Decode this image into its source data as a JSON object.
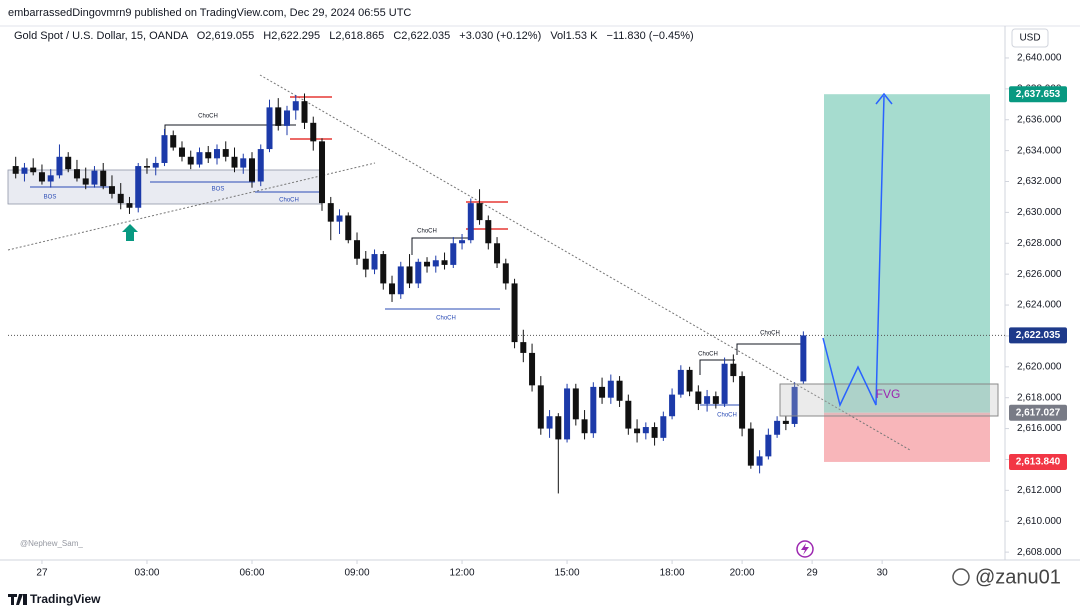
{
  "published": "embarrassedDingovmrn9 published on TradingView.com, Dec 29, 2024 06:55 UTC",
  "signature": "@Nephew_Sam_",
  "brand": "TradingView",
  "watermark": "@zanu01",
  "chart_data": {
    "type": "candlestick",
    "title": "Gold Spot / U.S. Dollar, 15, OANDA",
    "legend": [
      "O2,619.055",
      "H2,622.295",
      "L2,618.865",
      "C2,622.035",
      "+3.030 (+0.12%)",
      "Vol1.53 K",
      "−11.830 (−0.45%)"
    ],
    "currency": "USD",
    "up_color": "#1c3aa9",
    "down_color": "#111111",
    "x": [
      -0.75,
      -0.5,
      -0.25,
      0,
      0.25,
      0.5,
      0.75,
      1,
      1.25,
      1.5,
      1.75,
      2,
      2.25,
      2.5,
      2.75,
      3,
      3.25,
      3.5,
      3.75,
      4,
      4.25,
      4.5,
      4.75,
      5,
      5.25,
      5.5,
      5.75,
      6,
      6.25,
      6.5,
      6.75,
      7,
      7.25,
      7.5,
      7.75,
      8,
      8.25,
      8.5,
      8.75,
      9,
      9.25,
      9.5,
      9.75,
      10,
      10.25,
      10.5,
      10.75,
      11,
      11.25,
      11.5,
      11.75,
      12,
      12.25,
      12.5,
      12.75,
      13,
      13.25,
      13.5,
      13.75,
      14,
      14.25,
      14.5,
      14.75,
      15,
      15.25,
      15.5,
      15.75,
      16,
      16.25,
      16.5,
      16.75,
      17,
      17.25,
      17.5,
      17.75,
      18,
      18.25,
      18.5,
      18.75,
      19,
      19.25,
      19.5,
      19.75,
      20,
      20.25,
      20.5,
      20.75,
      21,
      21.25,
      21.5,
      21.75
    ],
    "open": [
      2633.0,
      2632.5,
      2632.9,
      2632.6,
      2632.0,
      2632.4,
      2633.6,
      2632.8,
      2632.2,
      2631.8,
      2632.7,
      2631.7,
      2631.2,
      2630.6,
      2630.3,
      2633.0,
      2632.9,
      2633.2,
      2635.0,
      2634.2,
      2633.6,
      2633.1,
      2633.9,
      2633.5,
      2634.1,
      2633.6,
      2632.9,
      2633.5,
      2632.0,
      2634.1,
      2636.8,
      2635.6,
      2636.6,
      2637.2,
      2635.8,
      2634.6,
      2630.6,
      2629.4,
      2629.8,
      2628.2,
      2627.0,
      2626.3,
      2627.3,
      2625.4,
      2624.7,
      2626.5,
      2625.4,
      2626.8,
      2626.5,
      2626.9,
      2626.6,
      2628.0,
      2628.2,
      2630.6,
      2629.5,
      2628.0,
      2626.7,
      2625.4,
      2621.6,
      2620.9,
      2618.8,
      2616.0,
      2616.8,
      2615.3,
      2618.6,
      2616.6,
      2615.7,
      2618.7,
      2618.0,
      2619.1,
      2617.8,
      2616.0,
      2615.7,
      2616.1,
      2615.4,
      2616.8,
      2618.2,
      2619.8,
      2618.4,
      2617.6,
      2618.1,
      2617.6,
      2620.2,
      2619.4,
      2616.0,
      2613.6,
      2614.2,
      2615.6,
      2616.5,
      2616.3,
      2619.055
    ],
    "high": [
      2633.6,
      2633.2,
      2633.5,
      2633.1,
      2632.8,
      2634.4,
      2633.9,
      2633.4,
      2632.9,
      2633.0,
      2633.2,
      2632.4,
      2631.9,
      2631.0,
      2633.2,
      2633.5,
      2633.6,
      2635.4,
      2635.3,
      2634.6,
      2634.0,
      2634.2,
      2634.3,
      2634.4,
      2634.6,
      2634.2,
      2633.8,
      2633.9,
      2634.4,
      2637.3,
      2637.4,
      2636.9,
      2637.6,
      2637.7,
      2636.2,
      2634.8,
      2631.0,
      2630.2,
      2630.0,
      2628.7,
      2627.5,
      2627.6,
      2627.5,
      2625.9,
      2626.8,
      2627.3,
      2627.0,
      2627.1,
      2627.2,
      2627.4,
      2628.4,
      2628.6,
      2630.9,
      2631.5,
      2629.8,
      2628.4,
      2627.0,
      2625.7,
      2622.4,
      2621.5,
      2619.4,
      2617.2,
      2617.0,
      2618.9,
      2618.9,
      2617.2,
      2619.0,
      2619.3,
      2619.5,
      2619.4,
      2618.2,
      2616.6,
      2616.4,
      2616.4,
      2617.1,
      2618.6,
      2620.1,
      2620.0,
      2618.8,
      2618.5,
      2618.4,
      2620.6,
      2620.8,
      2619.7,
      2616.4,
      2614.6,
      2616.0,
      2616.8,
      2616.8,
      2619.0,
      2622.295
    ],
    "low": [
      2632.2,
      2632.0,
      2632.4,
      2631.8,
      2631.6,
      2632.2,
      2632.6,
      2632.0,
      2631.5,
      2631.6,
      2631.5,
      2630.9,
      2630.2,
      2629.9,
      2630.0,
      2632.5,
      2632.4,
      2633.0,
      2634.0,
      2633.3,
      2632.8,
      2632.9,
      2633.2,
      2633.1,
      2633.3,
      2632.6,
      2632.5,
      2631.6,
      2631.7,
      2633.9,
      2635.3,
      2635.0,
      2636.0,
      2635.4,
      2634.0,
      2630.1,
      2628.2,
      2628.6,
      2628.0,
      2626.6,
      2625.8,
      2626.0,
      2625.0,
      2624.2,
      2624.4,
      2625.1,
      2625.1,
      2626.1,
      2626.1,
      2626.3,
      2626.4,
      2627.6,
      2628.0,
      2629.2,
      2627.6,
      2626.4,
      2625.0,
      2621.2,
      2620.3,
      2618.4,
      2615.6,
      2615.4,
      2611.8,
      2615.1,
      2616.2,
      2615.3,
      2615.4,
      2617.6,
      2617.6,
      2617.4,
      2615.6,
      2615.1,
      2615.3,
      2614.9,
      2615.2,
      2616.6,
      2618.0,
      2618.1,
      2617.2,
      2617.1,
      2617.3,
      2617.4,
      2619.0,
      2615.5,
      2613.4,
      2613.1,
      2614.0,
      2615.4,
      2615.9,
      2616.1,
      2618.865
    ],
    "close": [
      2632.5,
      2632.9,
      2632.6,
      2632.0,
      2632.4,
      2633.6,
      2632.8,
      2632.2,
      2631.8,
      2632.7,
      2631.7,
      2631.2,
      2630.6,
      2630.3,
      2633.0,
      2632.9,
      2633.2,
      2635.0,
      2634.2,
      2633.6,
      2633.1,
      2633.9,
      2633.5,
      2634.1,
      2633.6,
      2632.9,
      2633.5,
      2632.0,
      2634.1,
      2636.8,
      2635.6,
      2636.6,
      2637.2,
      2635.8,
      2634.6,
      2630.6,
      2629.4,
      2629.8,
      2628.2,
      2627.0,
      2626.3,
      2627.3,
      2625.4,
      2624.7,
      2626.5,
      2625.4,
      2626.8,
      2626.5,
      2626.9,
      2626.6,
      2628.0,
      2628.2,
      2630.6,
      2629.5,
      2628.0,
      2626.7,
      2625.4,
      2621.6,
      2620.9,
      2618.8,
      2616.0,
      2616.8,
      2615.3,
      2618.6,
      2616.6,
      2615.7,
      2618.7,
      2618.0,
      2619.1,
      2617.8,
      2616.0,
      2615.7,
      2616.1,
      2615.4,
      2616.8,
      2618.2,
      2619.8,
      2618.4,
      2617.6,
      2618.1,
      2617.6,
      2620.2,
      2619.4,
      2616.0,
      2613.6,
      2614.2,
      2615.6,
      2616.5,
      2616.3,
      2618.7,
      2622.035
    ],
    "xlim": [
      -0.97,
      27.51
    ],
    "xticks": [
      {
        "value": 0,
        "label": "27"
      },
      {
        "value": 3,
        "label": "03:00"
      },
      {
        "value": 6,
        "label": "06:00"
      },
      {
        "value": 9,
        "label": "09:00"
      },
      {
        "value": 12,
        "label": "12:00"
      },
      {
        "value": 15,
        "label": "15:00"
      },
      {
        "value": 18,
        "label": "18:00"
      },
      {
        "value": 20,
        "label": "20:00"
      },
      {
        "value": 22,
        "label": "29"
      },
      {
        "value": 24,
        "label": "30"
      }
    ],
    "ylim": [
      2607.49,
      2641.94
    ],
    "yticks": [
      {
        "value": 2608,
        "label": "2,608.000"
      },
      {
        "value": 2610,
        "label": "2,610.000"
      },
      {
        "value": 2612,
        "label": "2,612.000"
      },
      {
        "value": 2614,
        "label": "2,614.000"
      },
      {
        "value": 2616,
        "label": "2,616.000"
      },
      {
        "value": 2618,
        "label": "2,618.000"
      },
      {
        "value": 2620,
        "label": "2,620.000"
      },
      {
        "value": 2622,
        "label": "2,622.000"
      },
      {
        "value": 2624,
        "label": "2,624.000"
      },
      {
        "value": 2626,
        "label": "2,626.000"
      },
      {
        "value": 2628,
        "label": "2,628.000"
      },
      {
        "value": 2630,
        "label": "2,630.000"
      },
      {
        "value": 2632,
        "label": "2,632.000"
      },
      {
        "value": 2634,
        "label": "2,634.000"
      },
      {
        "value": 2636,
        "label": "2,636.000"
      },
      {
        "value": 2638,
        "label": "2,638.000"
      },
      {
        "value": 2640,
        "label": "2,640.000"
      }
    ],
    "last_price": 2622.035,
    "position": {
      "target": 2637.653,
      "entry": 2617.027,
      "stop": 2613.84,
      "profit_color": "#a6dccf",
      "loss_color": "#f8b6ba"
    },
    "price_labels": [
      {
        "value": 2637.653,
        "label": "2,637.653",
        "color": "#089981"
      },
      {
        "value": 2622.035,
        "label": "2,622.035",
        "color": "#1e3a8a"
      },
      {
        "value": 2617.027,
        "label": "2,617.027",
        "color": "#787b86"
      },
      {
        "value": 2613.84,
        "label": "2,613.840",
        "color": "#f23645"
      }
    ],
    "annotations": [
      {
        "text": "ChoCH",
        "color": "#131722"
      },
      {
        "text": "ChoCH",
        "color": "#2a4bb5"
      },
      {
        "text": "ChoCH",
        "color": "#131722"
      },
      {
        "text": "ChoCH",
        "color": "#2a4bb5"
      },
      {
        "text": "ChoCH",
        "color": "#131722"
      },
      {
        "text": "ChoCH",
        "color": "#131722"
      },
      {
        "text": "ChoCH",
        "color": "#2a4bb5"
      },
      {
        "text": "BOS",
        "color": "#2a4bb5"
      },
      {
        "text": "BOS",
        "color": "#2a4bb5"
      },
      {
        "text": "FVG",
        "color": "#9c27b0"
      }
    ]
  }
}
